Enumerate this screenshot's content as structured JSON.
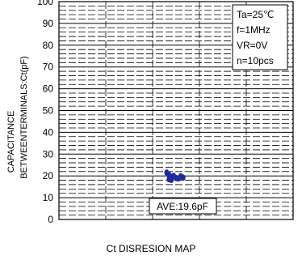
{
  "chart_data": {
    "type": "scatter",
    "title": "",
    "caption": "Ct DISRESION MAP",
    "ylabel_line1": "CAPACITANCE",
    "ylabel_line2": "BETWEENTERMINALS:Ct(pF)",
    "ylim": [
      0,
      100
    ],
    "y_ticks": [
      0,
      10,
      20,
      30,
      40,
      50,
      60,
      70,
      80,
      90,
      100
    ],
    "grid": true,
    "conditions": [
      "Ta=25℃",
      "f=1MHz",
      "VR=0V",
      "n=10pcs"
    ],
    "conditions_placement": "top-right",
    "average_label": "AVE:19.6pF",
    "series": [
      {
        "values": [
          {
            "x": 0.46,
            "y": 21.5
          },
          {
            "x": 0.47,
            "y": 20.5
          },
          {
            "x": 0.48,
            "y": 19.5
          },
          {
            "x": 0.47,
            "y": 18.5
          },
          {
            "x": 0.49,
            "y": 20.0
          },
          {
            "x": 0.5,
            "y": 19.0
          },
          {
            "x": 0.51,
            "y": 18.8
          },
          {
            "x": 0.52,
            "y": 19.8
          },
          {
            "x": 0.53,
            "y": 19.2
          },
          {
            "x": 0.48,
            "y": 18.2
          }
        ]
      }
    ],
    "marker_color": "#1f2a9b"
  }
}
